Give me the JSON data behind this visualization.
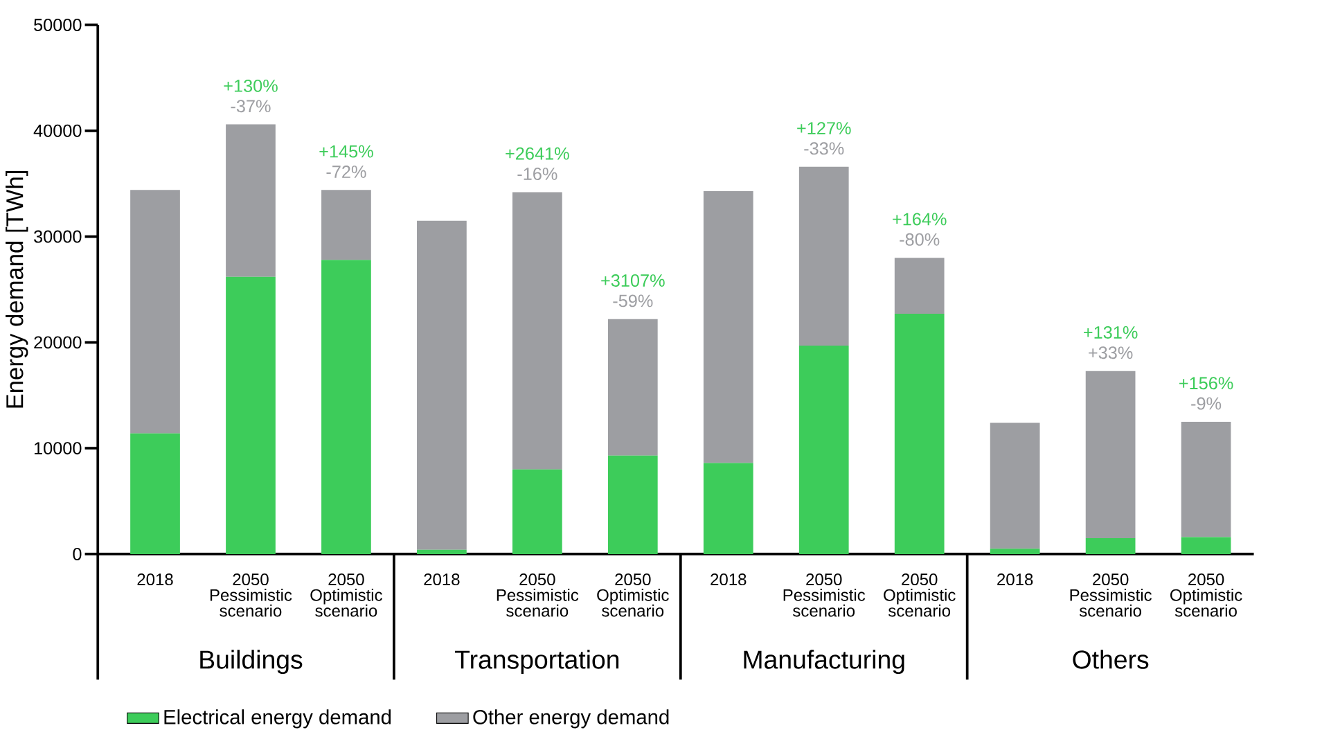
{
  "chart_data": {
    "type": "bar",
    "stacked": true,
    "ylabel": "Energy demand [TWh]",
    "categories": [
      "2018",
      "2050 Pessimistic scenario",
      "2050 Optimistic scenario",
      "2018",
      "2050 Pessimistic scenario",
      "2050 Optimistic scenario",
      "2018",
      "2050 Pessimistic scenario",
      "2050 Optimistic scenario",
      "2018",
      "2050 Pessimistic scenario",
      "2050 Optimistic scenario"
    ],
    "series": [
      {
        "name": "Electrical energy demand",
        "color": "#3dcc5a",
        "values": [
          11400,
          26200,
          27800,
          400,
          8000,
          9300,
          8600,
          19700,
          22700,
          500,
          1500,
          1600
        ]
      },
      {
        "name": "Other energy demand",
        "color": "#9d9ea2",
        "values": [
          23000,
          14400,
          6600,
          31100,
          26200,
          12900,
          25700,
          16900,
          5300,
          11900,
          15800,
          10900
        ]
      }
    ],
    "annotations": [
      "Buildings",
      "Transportation",
      "Manufacturing",
      "Others",
      "+130%",
      "-37%",
      "+145%",
      "-72%",
      "+2641%",
      "-16%",
      "+3107%",
      "-59%",
      "+127%",
      "-33%",
      "+164%",
      "-80%",
      "+131%",
      "+33%",
      "+156%",
      "-9%"
    ],
    "ylim": [
      0,
      50000
    ],
    "yticks": [
      0,
      10000,
      20000,
      30000,
      40000,
      50000
    ],
    "legend": "bottom"
  }
}
